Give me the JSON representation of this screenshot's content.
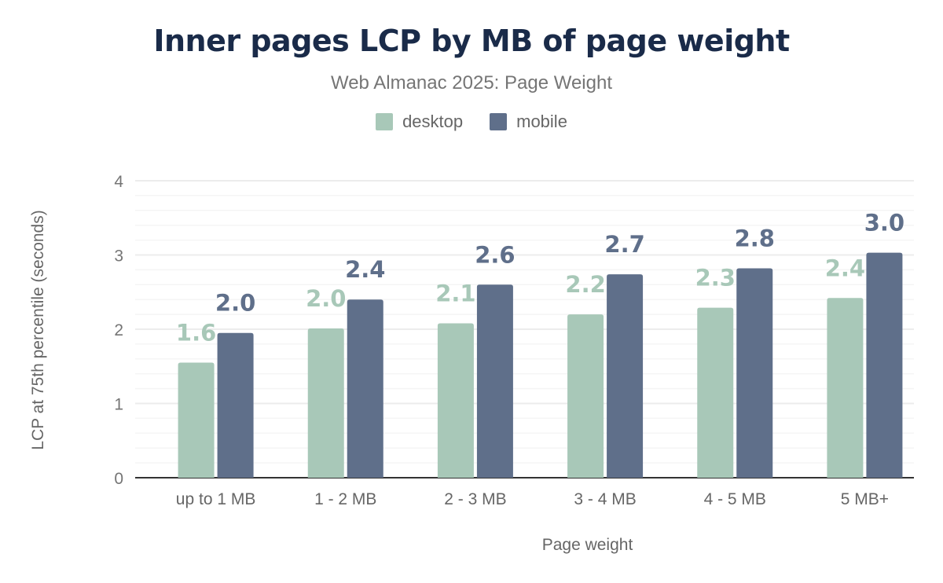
{
  "chart_data": {
    "type": "bar",
    "title": "Inner pages LCP by MB of page weight",
    "subtitle": "Web Almanac 2025: Page Weight",
    "xlabel": "Page weight",
    "ylabel": "LCP at 75th percentile (seconds)",
    "ylim": [
      0,
      4
    ],
    "yticks": [
      "0",
      "1",
      "2",
      "3",
      "4"
    ],
    "grid": true,
    "legend_position": "top",
    "categories": [
      "up to 1 MB",
      "1 - 2 MB",
      "2 - 3 MB",
      "3 - 4 MB",
      "4 - 5 MB",
      "5 MB+"
    ],
    "series": [
      {
        "name": "desktop",
        "color": "#a8c8b8",
        "values": [
          1.55,
          2.01,
          2.08,
          2.2,
          2.29,
          2.42
        ],
        "labels": [
          "1.6",
          "2.0",
          "2.1",
          "2.2",
          "2.3",
          "2.4"
        ]
      },
      {
        "name": "mobile",
        "color": "#5f6f8a",
        "values": [
          1.95,
          2.4,
          2.6,
          2.74,
          2.82,
          3.03
        ],
        "labels": [
          "2.0",
          "2.4",
          "2.6",
          "2.7",
          "2.8",
          "3.0"
        ]
      }
    ]
  }
}
